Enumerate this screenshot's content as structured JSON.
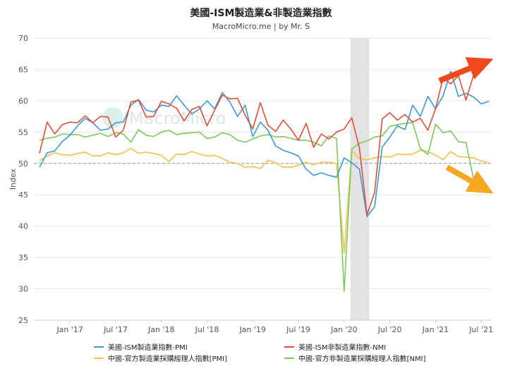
{
  "chart_data": {
    "type": "line",
    "title": "美國-ISM製造業&非製造業指數",
    "subtitle": "MacroMicro.me | by Mr. S",
    "watermark": "MacroMicro",
    "ylabel": "Index",
    "ylim": [
      25,
      70
    ],
    "yticks": [
      25,
      30,
      35,
      40,
      45,
      50,
      55,
      60,
      65,
      70
    ],
    "xticks": [
      {
        "label": "Jan '17",
        "index": 4
      },
      {
        "label": "Jul '17",
        "index": 10
      },
      {
        "label": "Jan '18",
        "index": 16
      },
      {
        "label": "Jul '18",
        "index": 22
      },
      {
        "label": "Jan '19",
        "index": 28
      },
      {
        "label": "Jul '19",
        "index": 34
      },
      {
        "label": "Jan '20",
        "index": 40
      },
      {
        "label": "Jul '20",
        "index": 46
      },
      {
        "label": "Jan '21",
        "index": 52
      },
      {
        "label": "Jul '21",
        "index": 58
      }
    ],
    "reference_line": 50,
    "shaded_range": [
      40.8,
      43.3
    ],
    "x_start": "2016-09",
    "x_end": "2021-08",
    "series": [
      {
        "name": "美國-ISM製造業指數-PMI",
        "color": "#3a9ad9",
        "values": [
          49.4,
          51.7,
          52.0,
          53.5,
          54.5,
          56.0,
          57.2,
          56.5,
          55.3,
          55.5,
          56.5,
          56.6,
          59.3,
          60.2,
          58.5,
          58.2,
          59.3,
          59.1,
          60.8,
          59.3,
          57.9,
          58.7,
          60.0,
          58.7,
          61.3,
          59.8,
          57.5,
          59.3,
          54.3,
          56.6,
          55.3,
          52.8,
          52.1,
          51.7,
          51.2,
          49.1,
          48.1,
          48.5,
          48.1,
          47.8,
          50.9,
          50.1,
          49.1,
          41.5,
          43.1,
          52.6,
          54.2,
          56.0,
          55.4,
          59.3,
          57.5,
          60.7,
          58.7,
          60.8,
          64.7,
          60.7,
          61.2,
          60.6,
          59.5,
          59.9
        ]
      },
      {
        "name": "美國-ISM非製造業指數-NMI",
        "color": "#e04e39",
        "values": [
          51.6,
          56.6,
          54.7,
          56.2,
          56.6,
          56.5,
          57.6,
          56.5,
          57.5,
          57.4,
          54.2,
          55.3,
          59.8,
          60.1,
          57.4,
          57.5,
          59.9,
          59.5,
          58.8,
          56.8,
          58.6,
          59.1,
          56.0,
          58.5,
          60.9,
          60.3,
          60.4,
          57.7,
          55.5,
          59.7,
          56.1,
          55.1,
          56.9,
          55.5,
          53.7,
          56.4,
          52.6,
          54.7,
          53.9,
          55.0,
          55.5,
          57.3,
          52.5,
          41.8,
          45.4,
          57.1,
          58.1,
          56.9,
          57.8,
          56.6,
          57.2,
          55.3,
          58.7,
          63.7,
          62.7,
          64.0,
          60.1,
          64.1
        ]
      },
      {
        "name": "中國-官方製造業採購經理人指數[PMI]",
        "color": "#f5c04a",
        "values": [
          50.4,
          51.2,
          51.7,
          51.4,
          51.3,
          51.6,
          51.8,
          51.2,
          51.2,
          51.7,
          51.4,
          51.7,
          52.4,
          51.6,
          51.8,
          51.6,
          51.3,
          50.3,
          51.5,
          51.4,
          51.9,
          51.5,
          51.2,
          51.3,
          50.8,
          50.2,
          50.0,
          49.4,
          49.5,
          49.2,
          50.5,
          50.1,
          49.4,
          49.4,
          49.7,
          50.2,
          49.8,
          50.2,
          50.2,
          50.0,
          35.7,
          52.0,
          50.8,
          50.6,
          50.9,
          51.1,
          51.0,
          51.5,
          51.4,
          51.5,
          52.1,
          51.9,
          51.3,
          50.6,
          51.9,
          51.1,
          51.0,
          50.9,
          50.4,
          50.1
        ]
      },
      {
        "name": "中國-官方非製造業採購經理人指數[NMI]",
        "color": "#7cc95a",
        "values": [
          53.7,
          54.0,
          54.2,
          54.7,
          54.6,
          54.6,
          54.2,
          54.5,
          54.8,
          54.3,
          54.9,
          54.7,
          53.4,
          55.4,
          54.5,
          54.3,
          55.0,
          55.3,
          54.6,
          54.8,
          54.9,
          55.0,
          54.0,
          54.2,
          54.9,
          54.6,
          53.7,
          53.4,
          53.9,
          54.4,
          54.6,
          54.2,
          54.3,
          54.0,
          53.7,
          53.7,
          53.4,
          52.8,
          54.4,
          54.0,
          29.6,
          52.3,
          53.2,
          53.6,
          54.2,
          54.4,
          55.9,
          56.2,
          56.4,
          56.5,
          52.4,
          51.4,
          56.3,
          54.9,
          55.2,
          53.5,
          53.3,
          47.5
        ]
      }
    ],
    "annotations": [
      {
        "shape": "arrow",
        "color": "#f04a1c",
        "direction": "up-right",
        "from": [
          0,
          63.5
        ],
        "to": [
          59,
          66.5
        ]
      },
      {
        "shape": "arrow",
        "color": "#f5a623",
        "direction": "down-right",
        "from": [
          55,
          49.5
        ],
        "to": [
          60,
          45
        ]
      }
    ],
    "grid": "horizontal",
    "legend_position": "bottom"
  }
}
